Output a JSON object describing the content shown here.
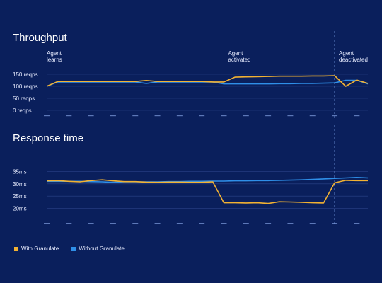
{
  "colors": {
    "background": "#0a1f5c",
    "with_granulate": "#f2b233",
    "without_granulate": "#2f8fe8",
    "grid": "#2a4387",
    "marker": "#7aa2e8"
  },
  "legend": {
    "with_label": "With Granulate",
    "without_label": "Without Granulate"
  },
  "chart_data": [
    {
      "type": "line",
      "title": "Throughput",
      "yticks": [
        "150 reqps",
        "100 reqps",
        "50 reqps",
        "0 reqps"
      ],
      "ytick_values": [
        150,
        100,
        50,
        0
      ],
      "ylim": [
        0,
        200
      ],
      "x": [
        0,
        1,
        2,
        3,
        4,
        5,
        6,
        7,
        8,
        9,
        10,
        11,
        12,
        13,
        14,
        15,
        16,
        17,
        18,
        19,
        20,
        21,
        22,
        23,
        24,
        25,
        26,
        27,
        28,
        29
      ],
      "annotations": [
        {
          "text": [
            "Agent",
            "learns"
          ],
          "at_x": 0,
          "line": false
        },
        {
          "text": [
            "Agent",
            "activated"
          ],
          "at_x": 16,
          "line": true
        },
        {
          "text": [
            "Agent",
            "deactivated"
          ],
          "at_x": 26,
          "line": true
        }
      ],
      "series": [
        {
          "name": "With Granulate",
          "color_key": "with_granulate",
          "values": [
            100,
            120,
            120,
            120,
            120,
            120,
            120,
            120,
            120,
            124,
            120,
            120,
            120,
            120,
            120,
            118,
            118,
            138,
            139,
            140,
            141,
            142,
            142,
            142,
            143,
            143,
            144,
            100,
            126,
            112
          ]
        },
        {
          "name": "Without Granulate",
          "color_key": "without_granulate",
          "values": [
            100,
            118,
            118,
            118,
            118,
            118,
            118,
            118,
            118,
            112,
            118,
            118,
            118,
            118,
            118,
            118,
            110,
            110,
            110,
            110,
            110,
            111,
            111,
            112,
            112,
            113,
            114,
            125,
            125,
            110
          ]
        }
      ]
    },
    {
      "type": "line",
      "title": "Response time",
      "yticks": [
        "35ms",
        "30ms",
        "25ms",
        "20ms"
      ],
      "ytick_values": [
        35,
        30,
        25,
        20
      ],
      "ylim": [
        17,
        38
      ],
      "x": [
        0,
        1,
        2,
        3,
        4,
        5,
        6,
        7,
        8,
        9,
        10,
        11,
        12,
        13,
        14,
        15,
        16,
        17,
        18,
        19,
        20,
        21,
        22,
        23,
        24,
        25,
        26,
        27,
        28,
        29
      ],
      "series": [
        {
          "name": "With Granulate",
          "color_key": "with_granulate",
          "values": [
            31.2,
            31.3,
            31,
            30.8,
            31.3,
            31.6,
            31.2,
            30.9,
            30.9,
            30.7,
            30.6,
            30.7,
            30.7,
            30.6,
            30.6,
            30.8,
            22.3,
            22.3,
            22.2,
            22.3,
            22,
            22.7,
            22.6,
            22.5,
            22.3,
            22.2,
            30.4,
            31.4,
            31.3,
            31.3
          ]
        },
        {
          "name": "Without Granulate",
          "color_key": "without_granulate",
          "values": [
            31,
            31,
            31,
            31,
            30.9,
            30.8,
            30.6,
            30.8,
            30.8,
            30.8,
            30.8,
            30.9,
            30.9,
            31,
            31,
            31.1,
            31.1,
            31.2,
            31.2,
            31.3,
            31.3,
            31.4,
            31.5,
            31.6,
            31.8,
            32,
            32.2,
            32.4,
            32.6,
            32.4
          ]
        }
      ]
    }
  ]
}
